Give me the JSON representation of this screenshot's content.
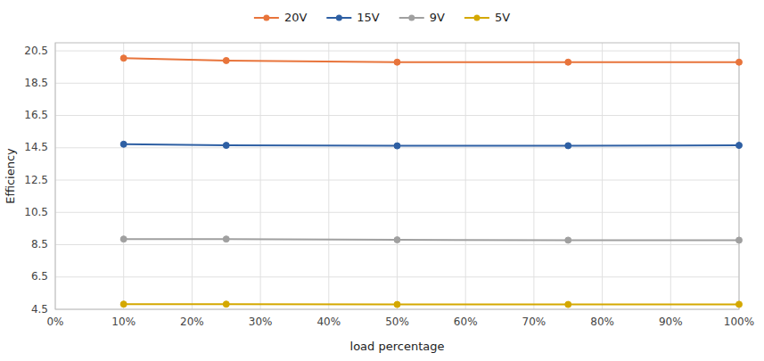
{
  "chart_data": {
    "type": "line",
    "xlabel": "load percentage",
    "ylabel": "Efficiency",
    "x": [
      0.1,
      0.25,
      0.5,
      0.75,
      1.0
    ],
    "series": [
      {
        "name": "20V",
        "color": "#E8743B",
        "values": [
          20.05,
          19.9,
          19.8,
          19.8,
          19.8
        ]
      },
      {
        "name": "15V",
        "color": "#2E5FA3",
        "values": [
          14.72,
          14.65,
          14.62,
          14.63,
          14.65
        ]
      },
      {
        "name": "9V",
        "color": "#A0A0A0",
        "values": [
          8.85,
          8.85,
          8.8,
          8.78,
          8.78
        ]
      },
      {
        "name": "5V",
        "color": "#D4A800",
        "values": [
          4.82,
          4.82,
          4.8,
          4.8,
          4.81
        ]
      }
    ],
    "xlim": [
      0.0,
      1.0
    ],
    "xticks": [
      {
        "value": 0.0,
        "label": "0%"
      },
      {
        "value": 0.1,
        "label": "10%"
      },
      {
        "value": 0.2,
        "label": "20%"
      },
      {
        "value": 0.3,
        "label": "30%"
      },
      {
        "value": 0.4,
        "label": "40%"
      },
      {
        "value": 0.5,
        "label": "50%"
      },
      {
        "value": 0.6,
        "label": "60%"
      },
      {
        "value": 0.7,
        "label": "70%"
      },
      {
        "value": 0.8,
        "label": "80%"
      },
      {
        "value": 0.9,
        "label": "90%"
      },
      {
        "value": 1.0,
        "label": "100%"
      }
    ],
    "ylim": [
      4.5,
      21.0
    ],
    "yticks": [
      4.5,
      6.5,
      8.5,
      10.5,
      12.5,
      14.5,
      16.5,
      18.5,
      20.5
    ],
    "grid": true,
    "legend": "top",
    "marker": "circle"
  }
}
